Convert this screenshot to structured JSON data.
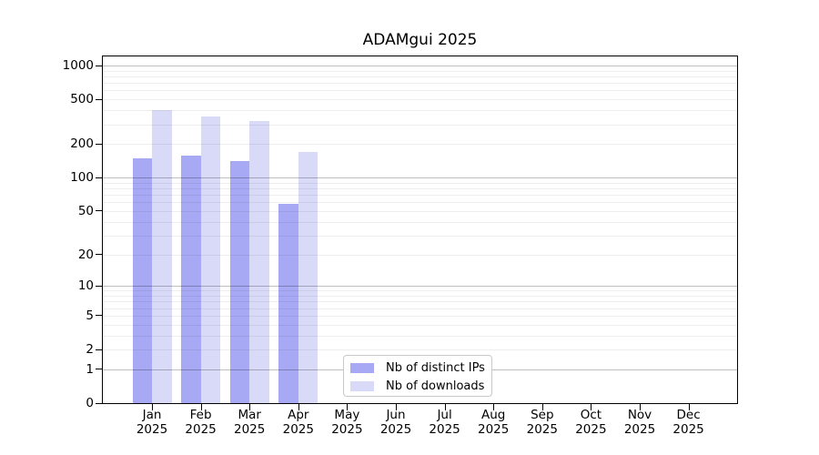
{
  "title": "ADAMgui 2025",
  "chart_data": {
    "type": "bar",
    "title": "ADAMgui 2025",
    "categories": [
      "Jan",
      "Feb",
      "Mar",
      "Apr",
      "May",
      "Jun",
      "Jul",
      "Aug",
      "Sep",
      "Oct",
      "Nov",
      "Dec"
    ],
    "year_label": "2025",
    "series": [
      {
        "name": "Nb of distinct IPs",
        "color": "#a8a9f4",
        "values": [
          148,
          157,
          140,
          58,
          0,
          0,
          0,
          0,
          0,
          0,
          0,
          0
        ]
      },
      {
        "name": "Nb of downloads",
        "color": "#d9daf8",
        "values": [
          400,
          350,
          320,
          170,
          0,
          0,
          0,
          0,
          0,
          0,
          0,
          0
        ]
      }
    ],
    "xlabel": "",
    "ylabel": "",
    "y_scale": "log10(1+v)",
    "y_ticks": [
      0,
      1,
      2,
      5,
      10,
      20,
      50,
      100,
      200,
      500,
      1000
    ],
    "ylim": [
      0,
      1070
    ],
    "grid": "horizontal",
    "legend_position": "bottom-center-inside"
  }
}
